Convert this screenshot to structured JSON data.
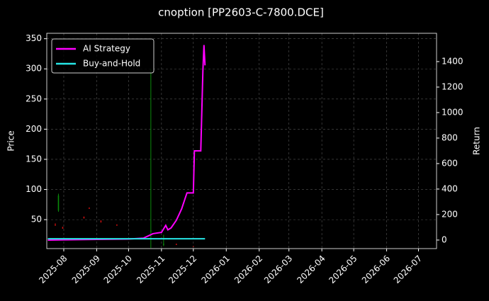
{
  "chart_data": {
    "type": "candlestick",
    "title": "cnoption [PP2603-C-7800.DCE]",
    "y_label": "Price",
    "y2_label": "Return",
    "x": [
      "2025-07-24",
      "2025-07-27",
      "2025-07-31",
      "2025-08-20",
      "2025-08-25",
      "2025-09-05",
      "2025-09-20",
      "2025-10-22",
      "2025-11-03",
      "2025-11-15",
      "2025-12-01"
    ],
    "open": [
      42,
      65,
      38,
      55,
      70,
      48,
      42,
      30,
      8,
      10,
      6
    ],
    "high": [
      44,
      93,
      38,
      55,
      70,
      49,
      42,
      300,
      25,
      10,
      6
    ],
    "low": [
      40,
      63,
      35,
      52,
      68,
      45,
      40,
      3,
      6,
      8,
      5
    ],
    "close": [
      40,
      90,
      35,
      52,
      68,
      46,
      40,
      32,
      10,
      8,
      5
    ],
    "up_color": "#0a8a0a",
    "down_color": "#d01010",
    "series": [
      {
        "name": "AI Strategy",
        "color": "#ff00ff",
        "axis": "y2",
        "x": [
          "2025-07-17",
          "2025-08-01",
          "2025-09-01",
          "2025-10-01",
          "2025-10-15",
          "2025-10-24",
          "2025-11-01",
          "2025-11-05",
          "2025-11-07",
          "2025-11-10",
          "2025-11-15",
          "2025-11-20",
          "2025-11-25",
          "2025-12-01",
          "2025-12-02",
          "2025-12-08",
          "2025-12-10",
          "2025-12-11",
          "2025-12-12"
        ],
        "values": [
          0,
          2,
          5,
          8,
          15,
          50,
          60,
          115,
          80,
          95,
          155,
          245,
          370,
          370,
          700,
          700,
          1330,
          1530,
          1370
        ]
      },
      {
        "name": "Buy-and-Hold",
        "color": "#26e6e6",
        "axis": "y2",
        "x": [
          "2025-07-17",
          "2025-09-01",
          "2025-11-01",
          "2025-12-12"
        ],
        "values": [
          10,
          10,
          10,
          10
        ]
      }
    ],
    "xlim": [
      "2025-07-16",
      "2026-07-18"
    ],
    "xticks": [
      "2025-08",
      "2025-09",
      "2025-10",
      "2025-11",
      "2025-12",
      "2026-01",
      "2026-02",
      "2026-03",
      "2026-04",
      "2026-05",
      "2026-06",
      "2026-07"
    ],
    "ylim": [
      2,
      359
    ],
    "yticks": [
      50,
      100,
      150,
      200,
      250,
      300,
      350
    ],
    "y2lim": [
      -67,
      1622
    ],
    "y2ticks": [
      0,
      200,
      400,
      600,
      800,
      1000,
      1200,
      1400
    ],
    "grid": true,
    "legend": "upper left"
  }
}
